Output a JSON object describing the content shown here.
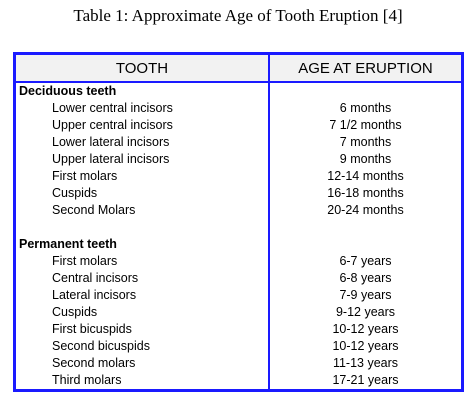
{
  "title": "Table 1: Approximate Age of Tooth Eruption [4]",
  "table": {
    "headers": [
      "TOOTH",
      "AGE AT ERUPTION"
    ],
    "sections": [
      {
        "title": "Deciduous teeth",
        "rows": [
          [
            "Lower central incisors",
            "6 months"
          ],
          [
            "Upper central incisors",
            "7 1/2 months"
          ],
          [
            "Lower lateral incisors",
            "7 months"
          ],
          [
            "Upper lateral incisors",
            "9 months"
          ],
          [
            "First molars",
            "12-14 months"
          ],
          [
            "Cuspids",
            "16-18 months"
          ],
          [
            "Second Molars",
            "20-24 months"
          ]
        ]
      },
      {
        "title": "Permanent teeth",
        "rows": [
          [
            "First molars",
            "6-7 years"
          ],
          [
            "Central incisors",
            "6-8 years"
          ],
          [
            "Lateral incisors",
            "7-9 years"
          ],
          [
            "Cuspids",
            "9-12 years"
          ],
          [
            "First bicuspids",
            "10-12 years"
          ],
          [
            "Second bicuspids",
            "10-12 years"
          ],
          [
            "Second molars",
            "11-13 years"
          ],
          [
            "Third molars",
            "17-21 years"
          ]
        ]
      }
    ]
  }
}
